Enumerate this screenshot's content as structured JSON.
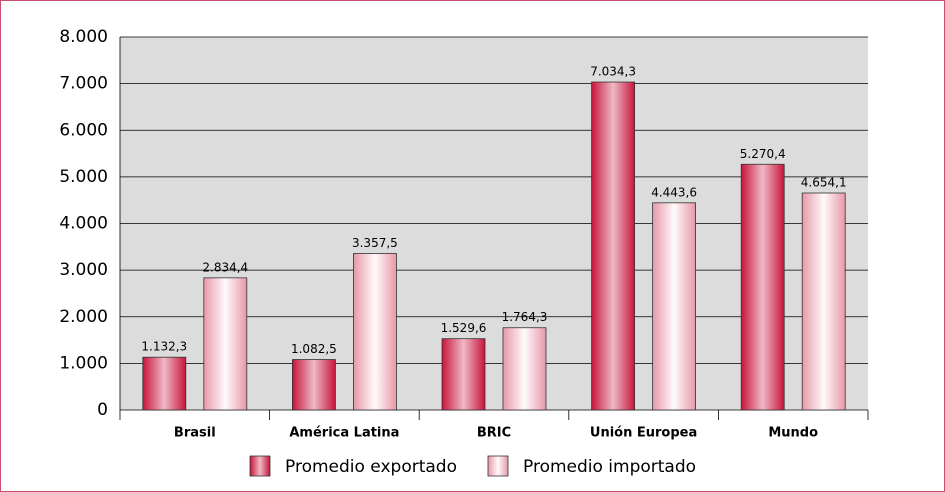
{
  "chart_data": {
    "type": "bar",
    "categories": [
      "Brasil",
      "América Latina",
      "BRIC",
      "Unión Europea",
      "Mundo"
    ],
    "series": [
      {
        "name": "Promedio exportado",
        "color": "#c8143c",
        "values": [
          1132.3,
          1082.5,
          1529.6,
          7034.3,
          5270.4
        ],
        "value_labels": [
          "1.132,3",
          "1.082,5",
          "1.529,6",
          "7.034,3",
          "5.270,4"
        ]
      },
      {
        "name": "Promedio importado",
        "color": "#e898a8",
        "values": [
          2834.4,
          3357.5,
          1764.3,
          4443.6,
          4654.1
        ],
        "value_labels": [
          "2.834,4",
          "3.357,5",
          "1.764,3",
          "4.443,6",
          "4.654,1"
        ]
      }
    ],
    "ylim": [
      0,
      8000
    ],
    "yticks": [
      0,
      {
        "value": 1000,
        "label": "1.000"
      },
      {
        "value": 2000,
        "label": "2.000"
      },
      {
        "value": 3000,
        "label": "3.000"
      },
      {
        "value": 4000,
        "label": "4.000"
      },
      {
        "value": 5000,
        "label": "5.000"
      },
      {
        "value": 6000,
        "label": "6.000"
      },
      {
        "value": 7000,
        "label": "7.000"
      },
      {
        "value": 8000,
        "label": "8.000"
      }
    ],
    "grid": true
  }
}
